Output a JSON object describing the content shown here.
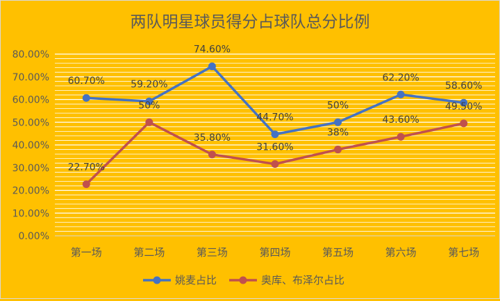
{
  "chart_data": {
    "type": "line",
    "title": "两队明星球员得分占球队总分比例",
    "xlabel": "",
    "ylabel": "",
    "categories": [
      "第一场",
      "第二场",
      "第三场",
      "第四场",
      "第五场",
      "第六场",
      "第七场"
    ],
    "ylim": [
      0,
      0.8
    ],
    "y_ticks": [
      "0.00%",
      "10.00%",
      "20.00%",
      "30.00%",
      "40.00%",
      "50.00%",
      "60.00%",
      "70.00%",
      "80.00%"
    ],
    "grid": true,
    "legend_position": "bottom",
    "series": [
      {
        "name": "姚麦占比",
        "color": "#4472C4",
        "values": [
          0.607,
          0.592,
          0.746,
          0.447,
          0.5,
          0.622,
          0.586
        ],
        "labels": [
          "60.70%",
          "59.20%",
          "74.60%",
          "44.70%",
          "50%",
          "62.20%",
          "58.60%"
        ]
      },
      {
        "name": "奥库、布泽尔占比",
        "color": "#C0504D",
        "values": [
          0.227,
          0.5,
          0.358,
          0.316,
          0.38,
          0.436,
          0.495
        ],
        "labels": [
          "22.70%",
          "50%",
          "35.80%",
          "31.60%",
          "38%",
          "43.60%",
          "49.50%"
        ]
      }
    ]
  }
}
